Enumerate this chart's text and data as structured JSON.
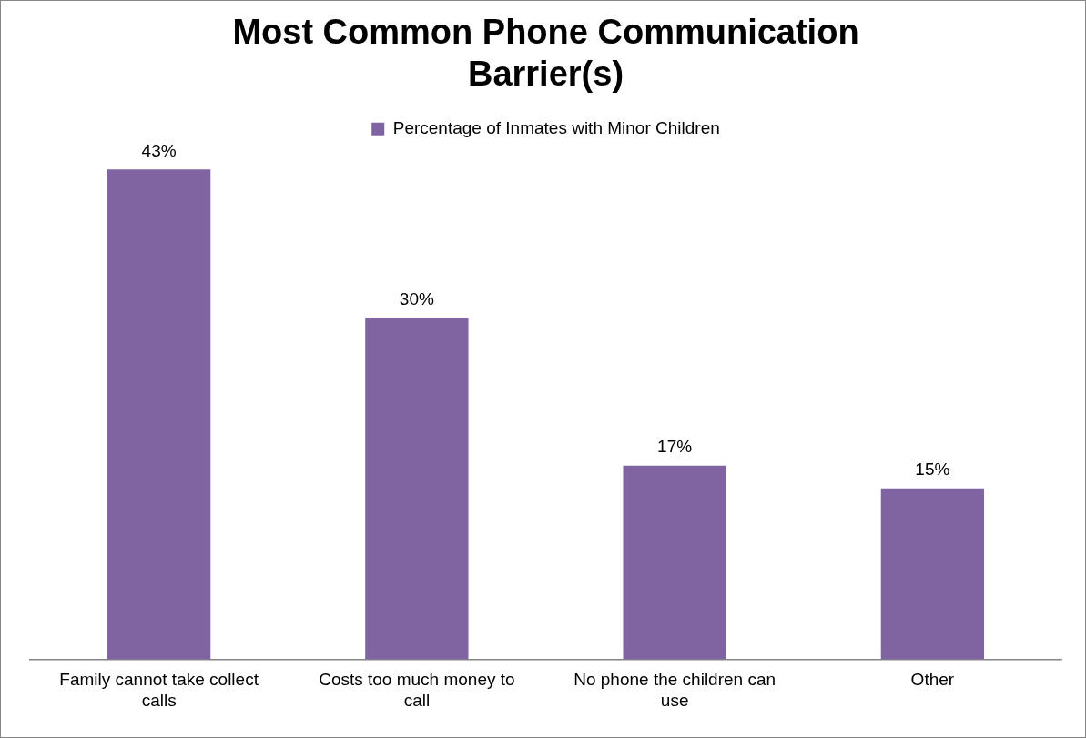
{
  "chart_data": {
    "type": "bar",
    "title": "Most Common Phone Communication Barrier(s)",
    "categories": [
      "Family cannot take collect calls",
      "Costs too much money to call",
      "No phone the children can use",
      "Other"
    ],
    "series": [
      {
        "name": "Percentage of Inmates with Minor Children",
        "color": "#8064a2",
        "values": [
          43,
          30,
          17,
          15
        ],
        "value_labels": [
          "43%",
          "30%",
          "17%",
          "15%"
        ]
      }
    ],
    "grid": false,
    "legend": "top"
  }
}
